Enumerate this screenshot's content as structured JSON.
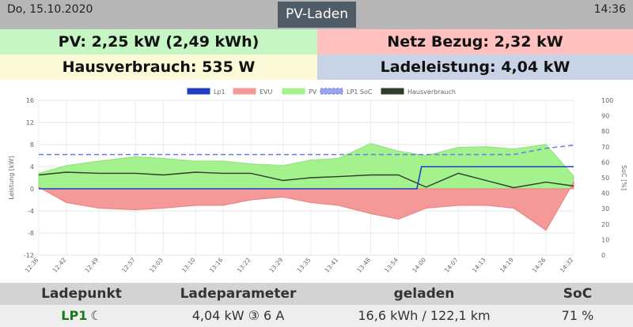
{
  "header": {
    "date": "Do, 15.10.2020",
    "mode": "PV-Laden",
    "time": "14:36"
  },
  "stats": {
    "pv": "PV: 2,25 kW (2,49 kWh)",
    "netz": "Netz Bezug: 2,32 kW",
    "haus": "Hausverbrauch: 535 W",
    "lade": "Ladeleistung: 4,04 kW"
  },
  "chart_data": {
    "type": "line",
    "legend_position": "top",
    "legend": [
      "Lp1",
      "EVU",
      "PV",
      "LP1 SoC",
      "Hausverbrauch"
    ],
    "colors": {
      "Lp1": "#1f3fc0",
      "EVU": "#f59898",
      "PV": "#a4f28e",
      "LP1 SoC": "#6a7ae6",
      "Hausverbrauch": "#2f3d2a"
    },
    "ylabel": "Leistung [kW]",
    "y2label": "SoC [%]",
    "ylim": [
      -12,
      16
    ],
    "y2lim": [
      0,
      100
    ],
    "yticks": [
      "16",
      "12",
      "8",
      "4",
      "0",
      "-4",
      "-8",
      "-12"
    ],
    "y2ticks": [
      "100",
      "90",
      "80",
      "70",
      "60",
      "50",
      "40",
      "30",
      "20",
      "10",
      "0"
    ],
    "xticks": [
      "12:36",
      "12:42",
      "12:49",
      "12:57",
      "13:03",
      "13:10",
      "13:16",
      "13:22",
      "13:29",
      "13:35",
      "13:41",
      "13:48",
      "13:54",
      "14:00",
      "14:07",
      "14:13",
      "14:19",
      "14:26",
      "14:32"
    ],
    "grid": true,
    "series": [
      {
        "name": "PV",
        "x": [
          "12:36",
          "12:42",
          "12:49",
          "12:57",
          "13:03",
          "13:10",
          "13:16",
          "13:22",
          "13:29",
          "13:35",
          "13:41",
          "13:48",
          "13:54",
          "14:00",
          "14:07",
          "14:13",
          "14:19",
          "14:26",
          "14:32"
        ],
        "values": [
          2.8,
          4.2,
          5.0,
          5.8,
          5.5,
          5.0,
          5.0,
          4.5,
          4.2,
          5.2,
          5.5,
          8.2,
          6.8,
          6.0,
          7.5,
          7.6,
          7.2,
          8.0,
          2.3
        ]
      },
      {
        "name": "EVU",
        "x": [
          "12:36",
          "12:42",
          "12:49",
          "12:57",
          "13:03",
          "13:10",
          "13:16",
          "13:22",
          "13:29",
          "13:35",
          "13:41",
          "13:48",
          "13:54",
          "14:00",
          "14:07",
          "14:13",
          "14:19",
          "14:26",
          "14:32"
        ],
        "values": [
          0.3,
          -2.5,
          -3.5,
          -3.8,
          -3.5,
          -3.0,
          -3.0,
          -2.0,
          -1.5,
          -2.5,
          -3.0,
          -4.5,
          -5.5,
          -3.5,
          -3.0,
          -3.0,
          -3.5,
          -7.5,
          1.2
        ]
      },
      {
        "name": "Lp1",
        "x": [
          "12:36",
          "13:58",
          "13:59",
          "14:32"
        ],
        "values": [
          0,
          0,
          4.0,
          4.0
        ]
      },
      {
        "name": "Hausverbrauch",
        "x": [
          "12:36",
          "12:42",
          "12:49",
          "12:57",
          "13:03",
          "13:10",
          "13:16",
          "13:22",
          "13:29",
          "13:35",
          "13:41",
          "13:48",
          "13:54",
          "14:00",
          "14:07",
          "14:13",
          "14:19",
          "14:26",
          "14:32"
        ],
        "values": [
          2.5,
          3.0,
          2.8,
          2.8,
          2.5,
          3.0,
          2.8,
          2.8,
          1.5,
          2.0,
          2.2,
          2.5,
          2.5,
          0.3,
          2.8,
          1.5,
          0.2,
          1.2,
          0.5
        ]
      },
      {
        "name": "LP1 SoC",
        "x": [
          "12:36",
          "14:19",
          "14:26",
          "14:32"
        ],
        "values": [
          65,
          65,
          69,
          71
        ]
      }
    ]
  },
  "table": {
    "headers": [
      "Ladepunkt",
      "Ladeparameter",
      "geladen",
      "SoC"
    ],
    "row": {
      "name": "LP1",
      "mode_icon": "moon-icon",
      "params": "4,04 kW ③ 6 A",
      "geladen": "16,6 kWh / 122,1 km",
      "soc": "71 %"
    }
  }
}
